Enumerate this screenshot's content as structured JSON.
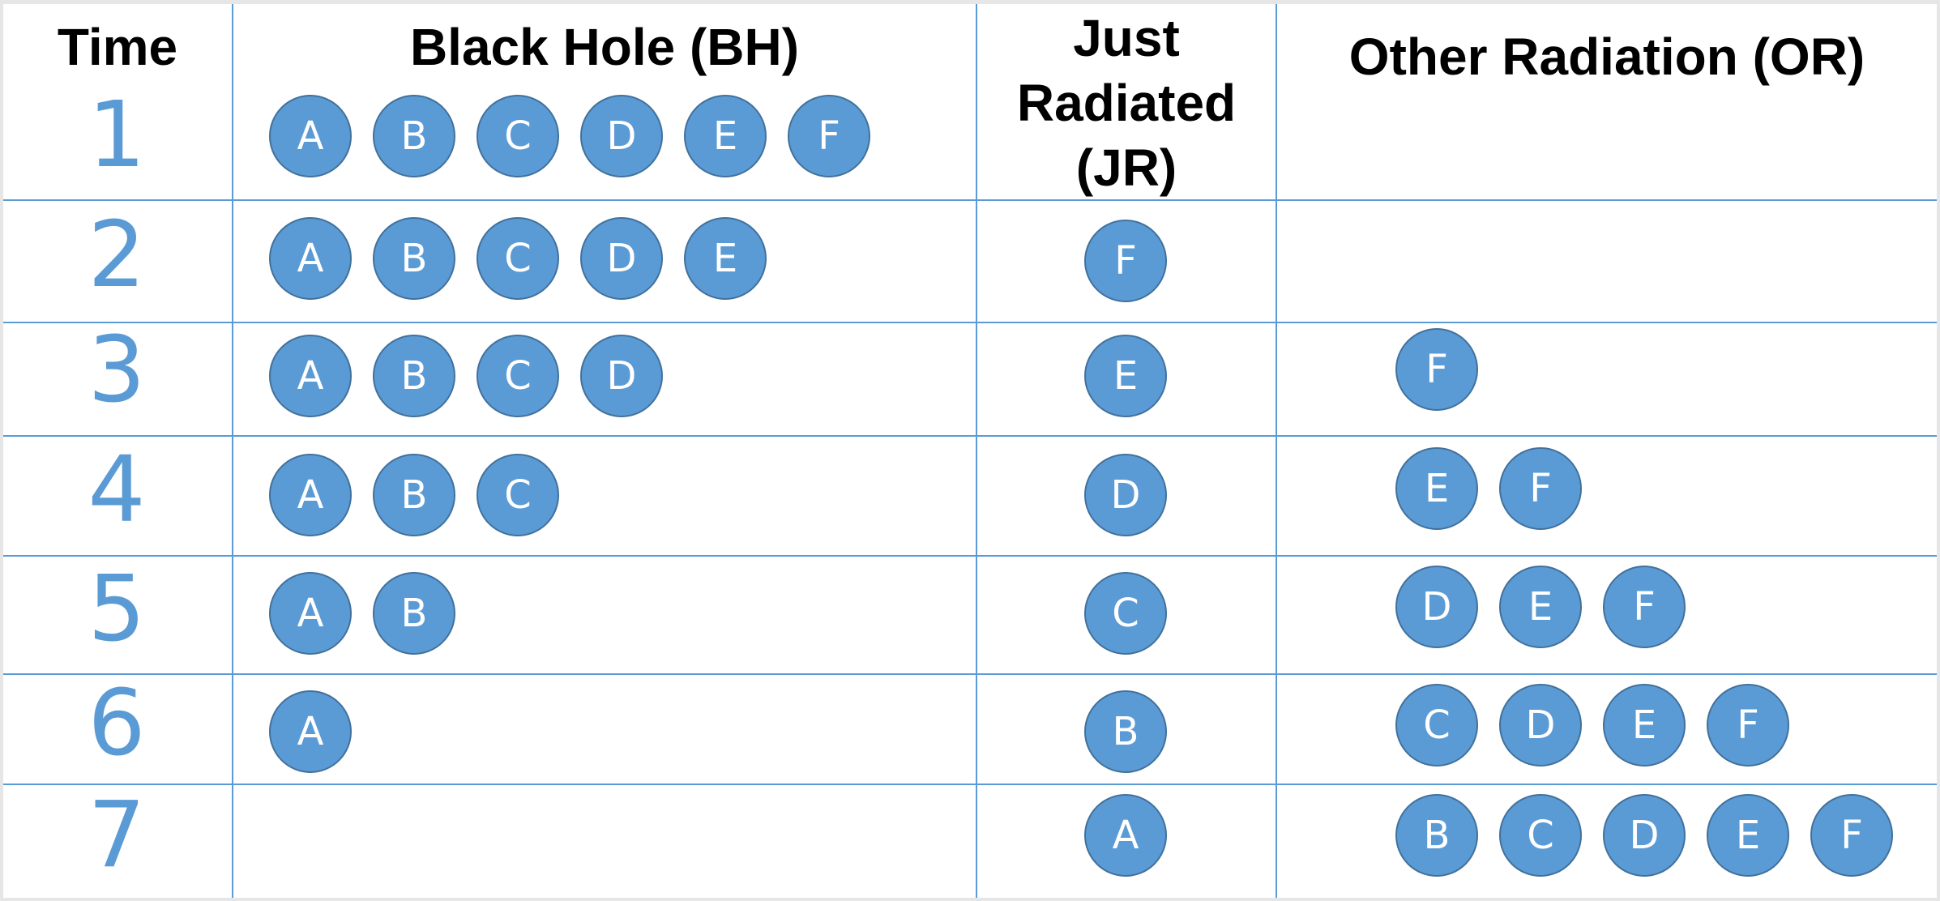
{
  "headers": {
    "time": "Time",
    "bh": "Black Hole (BH)",
    "jr": [
      "Just",
      "Radiated",
      "(JR)"
    ],
    "or": "Other Radiation (OR)"
  },
  "colors": {
    "ball_fill": "#5b9bd5",
    "ball_stroke": "#41719c",
    "grid": "#5b9bd5",
    "time_number": "#5b9bd5"
  },
  "rows": [
    {
      "time": "1",
      "bh": [
        "A",
        "B",
        "C",
        "D",
        "E",
        "F"
      ],
      "jr": [],
      "or": []
    },
    {
      "time": "2",
      "bh": [
        "A",
        "B",
        "C",
        "D",
        "E"
      ],
      "jr": [
        "F"
      ],
      "or": []
    },
    {
      "time": "3",
      "bh": [
        "A",
        "B",
        "C",
        "D"
      ],
      "jr": [
        "E"
      ],
      "or": [
        "F"
      ]
    },
    {
      "time": "4",
      "bh": [
        "A",
        "B",
        "C"
      ],
      "jr": [
        "D"
      ],
      "or": [
        "E",
        "F"
      ]
    },
    {
      "time": "5",
      "bh": [
        "A",
        "B"
      ],
      "jr": [
        "C"
      ],
      "or": [
        "D",
        "E",
        "F"
      ]
    },
    {
      "time": "6",
      "bh": [
        "A"
      ],
      "jr": [
        "B"
      ],
      "or": [
        "C",
        "D",
        "E",
        "F"
      ]
    },
    {
      "time": "7",
      "bh": [],
      "jr": [
        "A"
      ],
      "or": [
        "B",
        "C",
        "D",
        "E",
        "F"
      ]
    }
  ]
}
